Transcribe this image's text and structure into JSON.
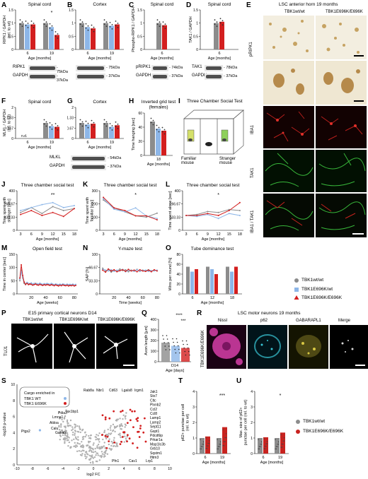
{
  "colors": {
    "wt": "#8c8c8c",
    "het": "#8db6e8",
    "ki": "#d31f1f",
    "pink": "#d63fa8",
    "cyan": "#39c6d6",
    "yellow": "#d8c843",
    "green": "#38b63a",
    "red": "#c8231f"
  },
  "panels": {
    "A": {
      "letter": "A",
      "title": "Spinal cord",
      "ylabel": "RIPK1 / GAPDH\n(rel. to wt)",
      "xlabel": "Age [months]",
      "ticks": [
        "6",
        "19"
      ],
      "star": "*",
      "wb": [
        "RIPK1",
        "GAPDH"
      ],
      "kda": [
        "- 75kDa",
        "- 37kDa"
      ]
    },
    "B": {
      "letter": "B",
      "title": "Cortex",
      "xlabel": "Age [months]",
      "ticks": [
        "6",
        "19"
      ],
      "kda": [
        "- 75kDa",
        "- 37kDa"
      ]
    },
    "C": {
      "letter": "C",
      "title": "Spinal cord",
      "ylabel": "Phospho-RIPK1 / GAPDH",
      "xlabel": "Age [months]",
      "ticks": [
        "6"
      ],
      "wb": [
        "pRIPK1",
        "GAPDH"
      ],
      "kda": [
        "- 74kDa",
        "- 37kDa"
      ]
    },
    "D": {
      "letter": "D",
      "title": "Spinal cord",
      "ylabel": "TAK1 / GAPDH",
      "xlabel": "Age [months]",
      "ticks": [
        "6"
      ],
      "wb": [
        "TAK1",
        "GAPDH"
      ],
      "kda": [
        "- 78kDa",
        "- 37kDa"
      ]
    },
    "E": {
      "letter": "E",
      "title": "LSC anterior horn 19 months",
      "cols": [
        "TBK1wt/wt",
        "TBK1E696K/E696K"
      ],
      "rows": [
        "pRIPK1",
        "IBA1",
        "TAK1",
        "IBA1 / TAK1"
      ]
    },
    "F": {
      "letter": "F",
      "title": "Spinal cord",
      "ylabel": "MLKL / GAPDH\n(rel. to wt)",
      "xlabel": "Age [months]",
      "ticks": [
        "6",
        "19"
      ],
      "nd": "n.d.",
      "wb": [
        "MLKL",
        "GAPDH"
      ],
      "kda": [
        "- 54kDa",
        "- 37kDa"
      ]
    },
    "G": {
      "letter": "G",
      "title": "Cortex",
      "xlabel": "Age [months]",
      "ticks": [
        "6",
        "19"
      ]
    },
    "H": {
      "letter": "H",
      "title": "Inverted grid test\n(females)",
      "ylabel": "Time hanging [sec]",
      "xlabel": "Age [months]",
      "ticks": [
        "18"
      ]
    },
    "I": {
      "letter": "I",
      "title": "Three Chamber Social Test",
      "left": "Familiar\nmouse",
      "right": "Stranger\nmouse"
    },
    "J": {
      "letter": "J",
      "title": "Three chamber social test",
      "ylabel": "Time spent with\nstranger [sec]",
      "xlabel": "Age [months]",
      "star": "**",
      "xt": [
        "3",
        "6",
        "9",
        "12",
        "15",
        "18"
      ]
    },
    "K": {
      "letter": "K",
      "title": "Three chamber social test",
      "ylabel": "Time spent with\nfamiliar [sec]",
      "xlabel": "Age [months]",
      "star": "*",
      "xt": [
        "3",
        "6",
        "9",
        "12",
        "15",
        "18"
      ]
    },
    "L": {
      "letter": "L",
      "title": "Three chamber social test",
      "ylabel": "Time spent alone [sec]",
      "xlabel": "Age [months]",
      "star": "*",
      "xt": [
        "3",
        "6",
        "9",
        "12",
        "15",
        "18"
      ]
    },
    "M": {
      "letter": "M",
      "title": "Open field test",
      "ylabel": "Time in center [sec]",
      "xlabel": "Age [weeks]",
      "xt": [
        "20",
        "40",
        "60",
        "80"
      ]
    },
    "N": {
      "letter": "N",
      "title": "Y-maze test",
      "ylabel": "SAP [%]",
      "xlabel": "Time [weeks]",
      "xt": [
        "20",
        "40",
        "60",
        "80"
      ]
    },
    "O": {
      "letter": "O",
      "title": "Tube dominance test",
      "ylabel": "Wins per round [%]",
      "xlabel": "Age [months]",
      "xt": [
        "6",
        "12",
        "18"
      ]
    },
    "P": {
      "letter": "P",
      "title": "E15 primary cortical neurons D14",
      "cols": [
        "TBK1wt/wt",
        "TBK1E696K/wt",
        "TBK1E696K/E696K"
      ],
      "row": "TUJ1"
    },
    "Q": {
      "letter": "Q",
      "ylabel": "Axon length [µm]",
      "xlabel": "Age [days]",
      "tick": "D14",
      "stars": [
        "****",
        "***"
      ]
    },
    "R": {
      "letter": "R",
      "title": "LSC motor neurons 19 months",
      "cols": [
        "Nissl",
        "p62",
        "GABARAPL1",
        "Merge"
      ],
      "row": "TBK1E696K/E696K"
    },
    "S": {
      "letter": "S",
      "ylabel": "-log10 p-value",
      "xlabel": "log2 FC",
      "legend_title": "Cargo enriched in",
      "legend": [
        "TBK1 WT",
        "TBK1 E696K"
      ],
      "genes": [
        "Rab8a",
        "Nbr1",
        "Cd63",
        "Lgals8",
        "Irgm1",
        "Jak1",
        "Stx7",
        "Cltc",
        "Plxnb2",
        "Ccl2",
        "Ccl8",
        "Lamp1",
        "Lamp2",
        "Sept11",
        "Gspt1",
        "Pdcd6ip",
        "Prkar1a",
        "Map1lc3b",
        "Grb10",
        "Sqstm1",
        "Ifitm3",
        "Tax1bp1",
        "Pdia3",
        "Lmna1",
        "Aldoa",
        "Calu",
        "Ganab",
        "Ptgs2",
        "Pfn1",
        "Cav1",
        "Lrp1"
      ],
      "xt": [
        "-10",
        "-8",
        "-6",
        "-4",
        "-2",
        "0",
        "2",
        "4",
        "6",
        "8",
        "10"
      ]
    },
    "T": {
      "letter": "T",
      "ylabel": "p62+ punctae per cell\n(rel. to wt)",
      "xlabel": "Age [months]",
      "ticks": [
        "6",
        "19"
      ],
      "star": "***"
    },
    "U": {
      "letter": "U",
      "ylabel": "Max. size of p62+\npunctae per cell (rel. to wt)",
      "xlabel": "Age [months]",
      "ticks": [
        "6",
        "19"
      ],
      "star": "*"
    }
  },
  "legend1": [
    "TBK1wt/wt",
    "TBK1E696K/wt",
    "TBK1E696K/E696K"
  ],
  "legend2": [
    "TBK1wt/wt",
    "TBK1E696K/E696K"
  ],
  "chart_data": [
    {
      "id": "A",
      "type": "bar",
      "categories": [
        "6",
        "19"
      ],
      "series": [
        {
          "name": "TBK1wt/wt",
          "values": [
            1.0,
            1.0
          ]
        },
        {
          "name": "TBK1E696K/wt",
          "values": [
            0.95,
            0.85
          ]
        },
        {
          "name": "TBK1E696K/E696K",
          "values": [
            0.95,
            0.55
          ]
        }
      ],
      "ylim": [
        0,
        1.5
      ]
    },
    {
      "id": "B",
      "type": "bar",
      "categories": [
        "6",
        "19"
      ],
      "series": [
        {
          "name": "TBK1wt/wt",
          "values": [
            1.0,
            1.0
          ]
        },
        {
          "name": "TBK1E696K/wt",
          "values": [
            0.85,
            0.9
          ]
        },
        {
          "name": "TBK1E696K/E696K",
          "values": [
            0.8,
            0.95
          ]
        }
      ],
      "ylim": [
        0,
        1.5
      ]
    },
    {
      "id": "C",
      "type": "bar",
      "categories": [
        "6"
      ],
      "series": [
        {
          "name": "TBK1wt/wt",
          "values": [
            1.0
          ]
        },
        {
          "name": "TBK1E696K/E696K",
          "values": [
            0.92
          ]
        }
      ],
      "ylim": [
        0,
        1.5
      ]
    },
    {
      "id": "D",
      "type": "bar",
      "categories": [
        "6"
      ],
      "series": [
        {
          "name": "TBK1wt/wt",
          "values": [
            1.0
          ]
        },
        {
          "name": "TBK1E696K/E696K",
          "values": [
            1.05
          ]
        }
      ],
      "ylim": [
        0,
        1.5
      ]
    },
    {
      "id": "F",
      "type": "bar",
      "categories": [
        "6",
        "19"
      ],
      "series": [
        {
          "name": "TBK1wt/wt",
          "values": [
            0,
            1.0
          ]
        },
        {
          "name": "TBK1E696K/wt",
          "values": [
            0,
            0.8
          ]
        },
        {
          "name": "TBK1E696K/E696K",
          "values": [
            0,
            0.75
          ]
        }
      ],
      "ylim": [
        0,
        2.0
      ]
    },
    {
      "id": "G",
      "type": "bar",
      "categories": [
        "6",
        "19"
      ],
      "series": [
        {
          "name": "TBK1wt/wt",
          "values": [
            1.0,
            1.0
          ]
        },
        {
          "name": "TBK1E696K/wt",
          "values": [
            0.9,
            0.75
          ]
        },
        {
          "name": "TBK1E696K/E696K",
          "values": [
            0.95,
            0.85
          ]
        }
      ],
      "ylim": [
        0,
        2.0
      ]
    },
    {
      "id": "H",
      "type": "bar",
      "categories": [
        "18"
      ],
      "series": [
        {
          "name": "TBK1wt/wt",
          "values": [
            48
          ]
        },
        {
          "name": "TBK1E696K/wt",
          "values": [
            38
          ]
        },
        {
          "name": "TBK1E696K/E696K",
          "values": [
            35
          ]
        }
      ],
      "ylim": [
        0,
        60
      ]
    },
    {
      "id": "J",
      "type": "line",
      "x": [
        3,
        6,
        9,
        12,
        15,
        18
      ],
      "series": [
        {
          "name": "TBK1wt/wt",
          "values": [
            180,
            230,
            170,
            240,
            200,
            220
          ]
        },
        {
          "name": "TBK1E696K/wt",
          "values": [
            200,
            230,
            260,
            280,
            230,
            250
          ]
        },
        {
          "name": "TBK1E696K/E696K",
          "values": [
            160,
            200,
            150,
            180,
            140,
            220
          ]
        }
      ],
      "ylim": [
        0,
        400
      ]
    },
    {
      "id": "K",
      "type": "line",
      "x": [
        3,
        6,
        9,
        12,
        15,
        18
      ],
      "series": [
        {
          "name": "TBK1wt/wt",
          "values": [
            230,
            170,
            140,
            110,
            100,
            130
          ]
        },
        {
          "name": "TBK1E696K/wt",
          "values": [
            240,
            160,
            140,
            170,
            110,
            90
          ]
        },
        {
          "name": "TBK1E696K/E696K",
          "values": [
            250,
            170,
            150,
            110,
            110,
            80
          ]
        }
      ],
      "ylim": [
        0,
        300
      ]
    },
    {
      "id": "L",
      "type": "line",
      "x": [
        3,
        6,
        9,
        12,
        15,
        18
      ],
      "series": [
        {
          "name": "TBK1wt/wt",
          "values": [
            150,
            160,
            190,
            180,
            210,
            200
          ]
        },
        {
          "name": "TBK1E696K/wt",
          "values": [
            150,
            140,
            160,
            120,
            170,
            150
          ]
        },
        {
          "name": "TBK1E696K/E696K",
          "values": [
            150,
            150,
            170,
            150,
            200,
            280
          ]
        }
      ],
      "ylim": [
        0,
        400
      ]
    },
    {
      "id": "M",
      "type": "line",
      "x": [
        4,
        6,
        8,
        10,
        12,
        14,
        16,
        18,
        20,
        22,
        24,
        26,
        28,
        30,
        32,
        34,
        36,
        38,
        40,
        42,
        44,
        46,
        48,
        50,
        52,
        54,
        56,
        58,
        60,
        62,
        64,
        66,
        68,
        70,
        72,
        74,
        76,
        78,
        80,
        82
      ],
      "series": [
        {
          "name": "TBK1wt/wt",
          "values": [
            50,
            90,
            60,
            40,
            35,
            42,
            38,
            36,
            40,
            34,
            38,
            40,
            37,
            35,
            39,
            36,
            34,
            37,
            35,
            38,
            36,
            34,
            38,
            35,
            33,
            36,
            34,
            32,
            35,
            33,
            36,
            34,
            33,
            35,
            32,
            34,
            33,
            35,
            32,
            34
          ]
        },
        {
          "name": "TBK1E696K/wt",
          "values": [
            55,
            85,
            62,
            45,
            38,
            44,
            40,
            39,
            42,
            37,
            40,
            38,
            39,
            37,
            41,
            38,
            36,
            39,
            37,
            40,
            38,
            36,
            40,
            37,
            35,
            38,
            36,
            35,
            37,
            35,
            38,
            36,
            34,
            37,
            35,
            36,
            35,
            37,
            34,
            36
          ]
        },
        {
          "name": "TBK1E696K/E696K",
          "values": [
            60,
            110,
            70,
            45,
            36,
            40,
            35,
            38,
            36,
            33,
            35,
            37,
            34,
            33,
            36,
            34,
            32,
            35,
            33,
            35,
            34,
            32,
            35,
            33,
            31,
            34,
            32,
            30,
            33,
            31,
            34,
            32,
            31,
            33,
            30,
            32,
            31,
            33,
            30,
            32
          ]
        }
      ],
      "ylim": [
        0,
        150
      ]
    },
    {
      "id": "N",
      "type": "line",
      "x": [
        4,
        8,
        12,
        16,
        20,
        24,
        28,
        32,
        36,
        40,
        44,
        48,
        52,
        56,
        60,
        64,
        68,
        72,
        76,
        80
      ],
      "series": [
        {
          "name": "TBK1wt/wt",
          "values": [
            65,
            58,
            62,
            55,
            60,
            57,
            63,
            59,
            61,
            56,
            60,
            58,
            62,
            57,
            60,
            59,
            61,
            58,
            60,
            59
          ]
        },
        {
          "name": "TBK1E696K/wt",
          "values": [
            62,
            60,
            58,
            61,
            57,
            60,
            58,
            62,
            56,
            60,
            59,
            57,
            61,
            58,
            59,
            60,
            57,
            59,
            58,
            60
          ]
        },
        {
          "name": "TBK1E696K/E696K",
          "values": [
            60,
            55,
            63,
            58,
            61,
            56,
            59,
            61,
            57,
            62,
            58,
            60,
            56,
            61,
            58,
            57,
            60,
            56,
            61,
            58
          ]
        }
      ],
      "ylim": [
        0,
        100
      ]
    },
    {
      "id": "O",
      "type": "bar",
      "categories": [
        "6",
        "12",
        "18"
      ],
      "series": [
        {
          "name": "TBK1wt/wt",
          "values": [
            55,
            55,
            55
          ]
        },
        {
          "name": "TBK1E696K/wt",
          "values": [
            45,
            50,
            45
          ]
        },
        {
          "name": "TBK1E696K/E696K",
          "values": [
            50,
            40,
            55
          ]
        }
      ],
      "ylim": [
        0,
        80
      ]
    },
    {
      "id": "Q",
      "type": "bar",
      "categories": [
        "TBK1wt/wt",
        "TBK1E696K/wt",
        "TBK1E696K/E696K"
      ],
      "values": [
        180,
        150,
        130
      ],
      "ylim": [
        0,
        400
      ]
    },
    {
      "id": "T",
      "type": "bar",
      "categories": [
        "6",
        "19"
      ],
      "series": [
        {
          "name": "TBK1wt/wt",
          "values": [
            1.0,
            1.0
          ]
        },
        {
          "name": "TBK1E696K/E696K",
          "values": [
            1.1,
            1.7
          ]
        }
      ],
      "ylim": [
        0,
        4
      ]
    },
    {
      "id": "U",
      "type": "bar",
      "categories": [
        "6",
        "19"
      ],
      "series": [
        {
          "name": "TBK1wt/wt",
          "values": [
            1.0,
            1.0
          ]
        },
        {
          "name": "TBK1E696K/E696K",
          "values": [
            1.05,
            1.35
          ]
        }
      ],
      "ylim": [
        0,
        4
      ]
    }
  ]
}
